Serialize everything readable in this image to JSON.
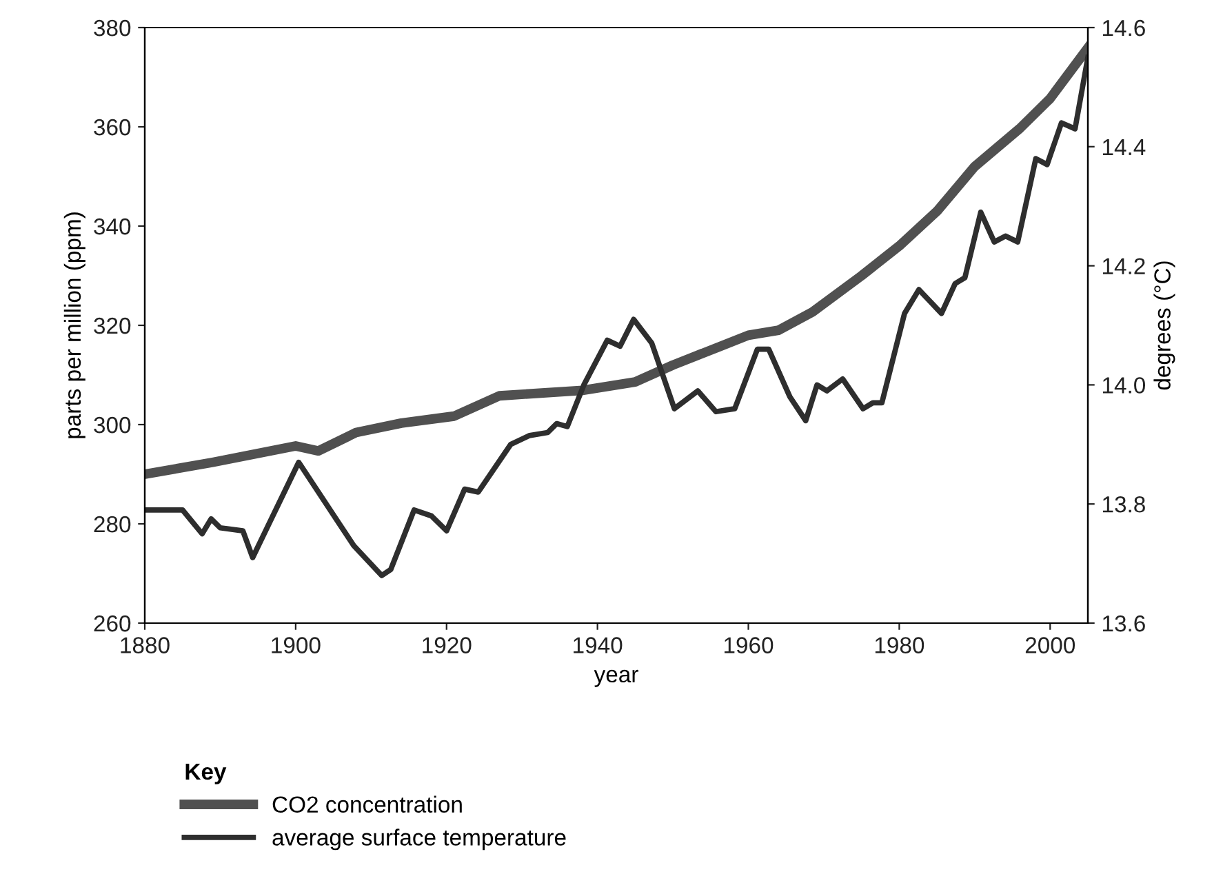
{
  "chart_data": {
    "type": "line",
    "xlabel": "year",
    "ylabel": "parts per million (ppm)",
    "y2label": "degrees (°C)",
    "legend_title": "Key",
    "legend": "bottom",
    "xlim": [
      1880,
      2005
    ],
    "xticks": [
      1880,
      1900,
      1920,
      1940,
      1960,
      1980,
      2000
    ],
    "ylim": [
      260,
      380
    ],
    "yticks": [
      260,
      280,
      300,
      320,
      340,
      360,
      380
    ],
    "y2lim": [
      13.6,
      14.6
    ],
    "y2ticks": [
      {
        "value": 13.6,
        "label": "13.6"
      },
      {
        "value": 13.8,
        "label": "13.8"
      },
      {
        "value": 14.0,
        "label": "14.0"
      },
      {
        "value": 14.2,
        "label": "14.2"
      },
      {
        "value": 14.4,
        "label": "14.4"
      },
      {
        "value": 14.6,
        "label": "14.6"
      }
    ],
    "grid": false,
    "series": [
      {
        "name": "CO2 concentration",
        "color": "#505050",
        "x": [
          1880,
          1889,
          1900,
          1903,
          1908,
          1914,
          1921,
          1927,
          1938,
          1945,
          1950,
          1960,
          1964,
          1968.5,
          1975,
          1980,
          1985,
          1990,
          1996,
          2000,
          2005
        ],
        "values": [
          290,
          292.4,
          295.7,
          294.7,
          298.4,
          300.3,
          301.7,
          305.8,
          306.9,
          308.6,
          312,
          318,
          319,
          322.7,
          330,
          336,
          343,
          352,
          359.7,
          365.7,
          375.9
        ]
      },
      {
        "name": "average surface temperature",
        "color": "#2e2e2e",
        "axis": "y2",
        "x": [
          1880,
          1885,
          1887.6,
          1888.8,
          1890,
          1893,
          1894.3,
          1900.4,
          1907.7,
          1911.4,
          1912.6,
          1915.7,
          1918,
          1920,
          1922.4,
          1924.2,
          1928.5,
          1931,
          1933.4,
          1934.6,
          1936,
          1938.2,
          1941.3,
          1943,
          1944.8,
          1947.2,
          1950.2,
          1953.3,
          1955.7,
          1958.2,
          1961.2,
          1962.7,
          1965.5,
          1967.6,
          1969.1,
          1970.4,
          1972.5,
          1975.2,
          1976.5,
          1977.7,
          1980.7,
          1982.6,
          1985.6,
          1987.4,
          1988.7,
          1990.8,
          1992.6,
          1994.1,
          1995.7,
          1998.1,
          1999.6,
          2001.5,
          2003.3,
          2005
        ],
        "values": [
          13.79,
          13.79,
          13.75,
          13.775,
          13.76,
          13.755,
          13.71,
          13.87,
          13.73,
          13.68,
          13.69,
          13.79,
          13.78,
          13.755,
          13.825,
          13.82,
          13.9,
          13.915,
          13.92,
          13.935,
          13.93,
          14.0,
          14.075,
          14.065,
          14.11,
          14.07,
          13.96,
          13.99,
          13.955,
          13.96,
          14.06,
          14.06,
          13.98,
          13.94,
          14.0,
          13.99,
          14.01,
          13.96,
          13.97,
          13.97,
          14.12,
          14.16,
          14.12,
          14.17,
          14.18,
          14.29,
          14.24,
          14.25,
          14.24,
          14.38,
          14.37,
          14.44,
          14.43,
          14.55
        ]
      }
    ]
  }
}
